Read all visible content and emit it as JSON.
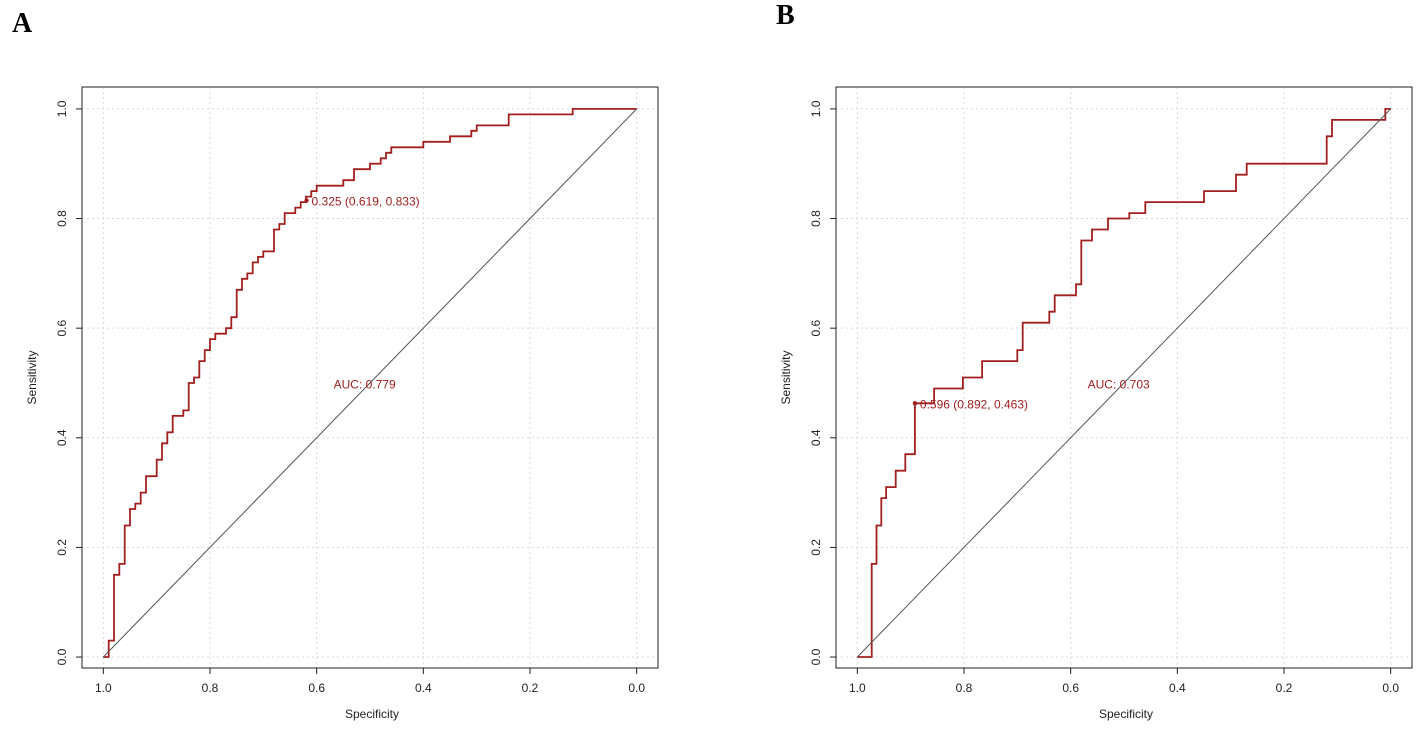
{
  "colors": {
    "roc": "#a31f1f",
    "diagonal": "#555555",
    "grid": "#d9d9d9",
    "axis": "#222222"
  },
  "chart_data": [
    {
      "panel": "A",
      "type": "line",
      "title": "",
      "xlabel": "Specificity",
      "ylabel": "Sensitivity",
      "xlim": [
        1.04,
        -0.04
      ],
      "ylim": [
        -0.02,
        1.04
      ],
      "x_ticks": [
        1.0,
        0.8,
        0.6,
        0.4,
        0.2,
        0.0
      ],
      "x_tick_labels": [
        "1.0",
        "0.8",
        "0.6",
        "0.4",
        "0.2",
        "0.0"
      ],
      "y_ticks": [
        0.0,
        0.2,
        0.4,
        0.6,
        0.8,
        1.0
      ],
      "y_tick_labels": [
        "0.0",
        "0.2",
        "0.4",
        "0.6",
        "0.8",
        "1.0"
      ],
      "grid": true,
      "auc_label": "AUC: 0.779",
      "auc_label_pos": [
        0.51,
        0.49
      ],
      "threshold_label": "0.325 (0.619, 0.833)",
      "threshold_point": [
        0.619,
        0.833
      ],
      "series": [
        {
          "name": "ROC",
          "x": [
            1.0,
            0.99,
            0.99,
            0.98,
            0.98,
            0.97,
            0.97,
            0.96,
            0.96,
            0.95,
            0.95,
            0.94,
            0.94,
            0.93,
            0.93,
            0.92,
            0.92,
            0.9,
            0.9,
            0.89,
            0.89,
            0.88,
            0.88,
            0.87,
            0.87,
            0.85,
            0.85,
            0.84,
            0.84,
            0.83,
            0.83,
            0.82,
            0.82,
            0.81,
            0.81,
            0.8,
            0.8,
            0.79,
            0.79,
            0.77,
            0.77,
            0.76,
            0.76,
            0.75,
            0.75,
            0.74,
            0.74,
            0.73,
            0.73,
            0.72,
            0.72,
            0.71,
            0.71,
            0.7,
            0.7,
            0.68,
            0.68,
            0.67,
            0.67,
            0.66,
            0.66,
            0.64,
            0.64,
            0.63,
            0.63,
            0.62,
            0.62,
            0.61,
            0.61,
            0.6,
            0.6,
            0.55,
            0.55,
            0.53,
            0.53,
            0.5,
            0.5,
            0.48,
            0.48,
            0.47,
            0.47,
            0.46,
            0.46,
            0.4,
            0.4,
            0.35,
            0.35,
            0.31,
            0.31,
            0.3,
            0.3,
            0.24,
            0.24,
            0.12,
            0.12,
            0.0
          ],
          "y": [
            0.0,
            0.0,
            0.03,
            0.03,
            0.15,
            0.15,
            0.17,
            0.17,
            0.24,
            0.24,
            0.27,
            0.27,
            0.28,
            0.28,
            0.3,
            0.3,
            0.33,
            0.33,
            0.36,
            0.36,
            0.39,
            0.39,
            0.41,
            0.41,
            0.44,
            0.44,
            0.45,
            0.45,
            0.5,
            0.5,
            0.51,
            0.51,
            0.54,
            0.54,
            0.56,
            0.56,
            0.58,
            0.58,
            0.59,
            0.59,
            0.6,
            0.6,
            0.62,
            0.62,
            0.67,
            0.67,
            0.69,
            0.69,
            0.7,
            0.7,
            0.72,
            0.72,
            0.73,
            0.73,
            0.74,
            0.74,
            0.78,
            0.78,
            0.79,
            0.79,
            0.81,
            0.81,
            0.82,
            0.82,
            0.83,
            0.83,
            0.84,
            0.84,
            0.85,
            0.85,
            0.86,
            0.86,
            0.87,
            0.87,
            0.89,
            0.89,
            0.9,
            0.9,
            0.91,
            0.91,
            0.92,
            0.92,
            0.93,
            0.93,
            0.94,
            0.94,
            0.95,
            0.95,
            0.96,
            0.96,
            0.97,
            0.97,
            0.99,
            0.99,
            1.0,
            1.0
          ]
        },
        {
          "name": "diagonal",
          "x": [
            1.0,
            0.0
          ],
          "y": [
            0.0,
            1.0
          ]
        }
      ]
    },
    {
      "panel": "B",
      "type": "line",
      "title": "",
      "xlabel": "Specificity",
      "ylabel": "Sensitivity",
      "xlim": [
        1.04,
        -0.04
      ],
      "ylim": [
        -0.02,
        1.04
      ],
      "x_ticks": [
        1.0,
        0.8,
        0.6,
        0.4,
        0.2,
        0.0
      ],
      "x_tick_labels": [
        "1.0",
        "0.8",
        "0.6",
        "0.4",
        "0.2",
        "0.0"
      ],
      "y_ticks": [
        0.0,
        0.2,
        0.4,
        0.6,
        0.8,
        1.0
      ],
      "y_tick_labels": [
        "0.0",
        "0.2",
        "0.4",
        "0.6",
        "0.8",
        "1.0"
      ],
      "grid": true,
      "auc_label": "AUC: 0.703",
      "auc_label_pos": [
        0.51,
        0.49
      ],
      "threshold_label": "0.596 (0.892, 0.463)",
      "threshold_point": [
        0.892,
        0.463
      ],
      "series": [
        {
          "name": "ROC",
          "x": [
            1.0,
            0.973,
            0.973,
            0.964,
            0.964,
            0.955,
            0.955,
            0.946,
            0.946,
            0.928,
            0.928,
            0.91,
            0.91,
            0.892,
            0.892,
            0.856,
            0.856,
            0.802,
            0.802,
            0.766,
            0.766,
            0.7,
            0.7,
            0.69,
            0.69,
            0.64,
            0.64,
            0.63,
            0.63,
            0.59,
            0.59,
            0.58,
            0.58,
            0.56,
            0.56,
            0.53,
            0.53,
            0.49,
            0.49,
            0.46,
            0.46,
            0.35,
            0.35,
            0.29,
            0.29,
            0.27,
            0.27,
            0.12,
            0.12,
            0.11,
            0.11,
            0.02,
            0.02,
            0.01,
            0.01,
            0.0
          ],
          "y": [
            0.0,
            0.0,
            0.17,
            0.17,
            0.24,
            0.24,
            0.29,
            0.29,
            0.31,
            0.31,
            0.34,
            0.34,
            0.37,
            0.37,
            0.463,
            0.463,
            0.49,
            0.49,
            0.51,
            0.51,
            0.54,
            0.54,
            0.56,
            0.56,
            0.61,
            0.61,
            0.63,
            0.63,
            0.66,
            0.66,
            0.68,
            0.68,
            0.76,
            0.76,
            0.78,
            0.78,
            0.8,
            0.8,
            0.81,
            0.81,
            0.83,
            0.83,
            0.85,
            0.85,
            0.88,
            0.88,
            0.9,
            0.9,
            0.95,
            0.95,
            0.98,
            0.98,
            0.98,
            0.98,
            1.0,
            1.0
          ]
        },
        {
          "name": "diagonal",
          "x": [
            1.0,
            0.0
          ],
          "y": [
            0.0,
            1.0
          ]
        }
      ]
    }
  ]
}
